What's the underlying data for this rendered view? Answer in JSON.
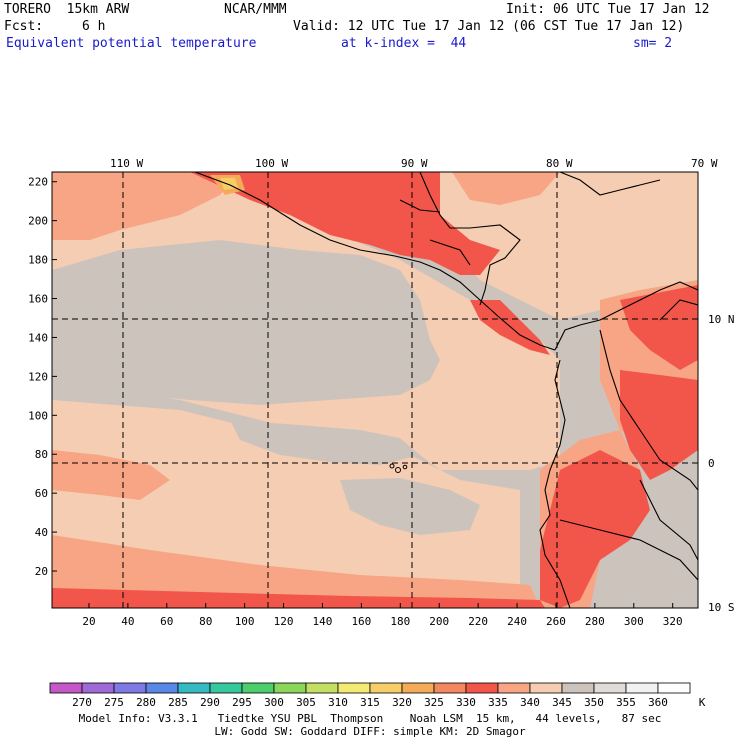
{
  "header": {
    "model_name": "TORERO  15km ARW",
    "org": "NCAR/MMM",
    "init": "Init: 06 UTC Tue 17 Jan 12",
    "fcst_label": "Fcst:",
    "fcst_value": "6 h",
    "valid": "Valid: 12 UTC Tue 17 Jan 12 (06 CST Tue 17 Jan 12)",
    "field": "Equivalent potential temperature",
    "level": "at k-index =  44",
    "smooth": "sm= 2"
  },
  "map": {
    "top_lon_labels": [
      "110 W",
      "100 W",
      "90 W",
      "80 W",
      "70 W"
    ],
    "right_lat_labels": [
      "10 N",
      "0",
      "10 S"
    ],
    "left_y_ticks": [
      "220",
      "200",
      "180",
      "160",
      "140",
      "120",
      "100",
      "80",
      "60",
      "40",
      "20"
    ],
    "bottom_x_ticks": [
      "20",
      "40",
      "60",
      "80",
      "100",
      "120",
      "140",
      "160",
      "180",
      "200",
      "220",
      "240",
      "260",
      "280",
      "300",
      "320"
    ],
    "x_range": [
      1,
      333
    ],
    "y_range": [
      1,
      225
    ],
    "colors": {
      "ocean_low": "#cdc3bd",
      "ocean_mid": "#f5cdb2",
      "warm": "#f7a585",
      "hot": "#f2564a",
      "hottest": "#e83c3a",
      "land_cool": "#ffffff"
    }
  },
  "colorbar": {
    "labels": [
      "270",
      "275",
      "280",
      "285",
      "290",
      "295",
      "300",
      "305",
      "310",
      "315",
      "320",
      "325",
      "330",
      "335",
      "340",
      "345",
      "350",
      "355",
      "360"
    ],
    "unit": "K",
    "colors": [
      "#c458c9",
      "#9e6ad6",
      "#7f79e5",
      "#5a86e8",
      "#35b9c2",
      "#37c79c",
      "#4dcd6b",
      "#8ad65a",
      "#c3e064",
      "#f2ea72",
      "#f7cd68",
      "#f5aa5a",
      "#f28760",
      "#f2564a",
      "#f7a585",
      "#f5cdb2",
      "#cdc3bd",
      "#e0dcd8",
      "#f3f1ef",
      "#ffffff"
    ]
  },
  "footer": {
    "line1": "Model Info: V3.3.1   Tiedtke YSU PBL  Thompson    Noah LSM  15 km,   44 levels,   87 sec",
    "line2": "LW: Godd SW: Goddard DIFF: simple KM: 2D Smagor"
  }
}
